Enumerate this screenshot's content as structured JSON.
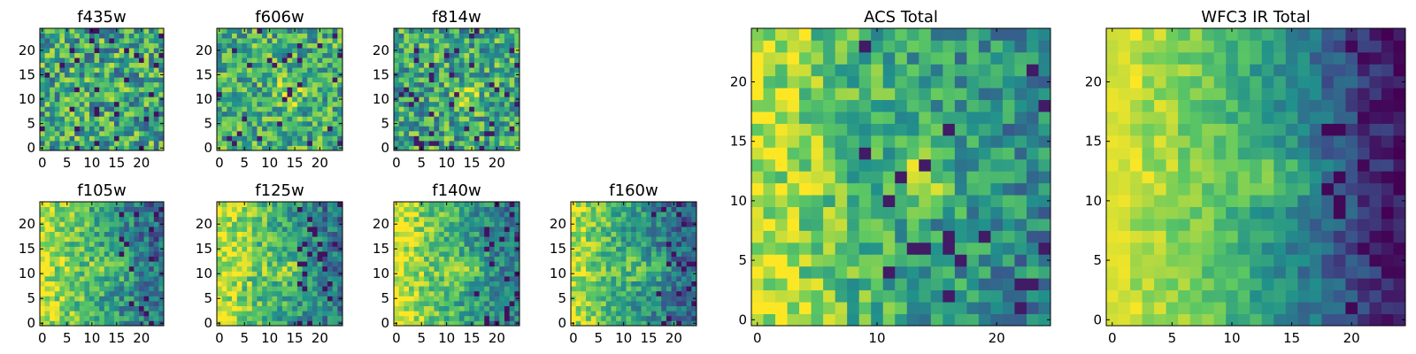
{
  "figure": {
    "colormap": "viridis",
    "colormap_stops": [
      "#440154",
      "#3b528b",
      "#21918c",
      "#5ec962",
      "#fde725"
    ],
    "background": "#ffffff"
  },
  "chart_data": [
    {
      "type": "heatmap",
      "title": "f435w",
      "grid_shape": [
        25,
        25
      ],
      "xlim": [
        0,
        24
      ],
      "ylim": [
        0,
        24
      ],
      "xticks": [
        0,
        5,
        10,
        15,
        20
      ],
      "yticks": [
        0,
        5,
        10,
        15,
        20
      ],
      "pattern": "noise",
      "value_range": [
        0.0,
        1.0
      ],
      "noise_amplitude": 0.32,
      "mean_level": 0.6,
      "grid": false
    },
    {
      "type": "heatmap",
      "title": "f606w",
      "grid_shape": [
        25,
        25
      ],
      "xlim": [
        0,
        24
      ],
      "ylim": [
        0,
        24
      ],
      "xticks": [
        0,
        5,
        10,
        15,
        20
      ],
      "yticks": [
        0,
        5,
        10,
        15,
        20
      ],
      "pattern": "blob",
      "value_range": [
        0.0,
        1.0
      ],
      "noise_amplitude": 0.28,
      "mean_level": 0.62,
      "grid": false
    },
    {
      "type": "heatmap",
      "title": "f814w",
      "grid_shape": [
        25,
        25
      ],
      "xlim": [
        0,
        24
      ],
      "ylim": [
        0,
        24
      ],
      "xticks": [
        0,
        5,
        10,
        15,
        20
      ],
      "yticks": [
        0,
        5,
        10,
        15,
        20
      ],
      "pattern": "blob",
      "value_range": [
        0.0,
        1.0
      ],
      "noise_amplitude": 0.3,
      "mean_level": 0.6,
      "grid": false
    },
    {
      "type": "heatmap",
      "title": "f105w",
      "grid_shape": [
        25,
        25
      ],
      "xlim": [
        0,
        24
      ],
      "ylim": [
        0,
        24
      ],
      "xticks": [
        0,
        5,
        10,
        15,
        20
      ],
      "yticks": [
        0,
        5,
        10,
        15,
        20
      ],
      "pattern": "left-gradient",
      "value_range": [
        0.0,
        1.0
      ],
      "noise_amplitude": 0.22,
      "mean_level": 0.55,
      "grid": false
    },
    {
      "type": "heatmap",
      "title": "f125w",
      "grid_shape": [
        25,
        25
      ],
      "xlim": [
        0,
        24
      ],
      "ylim": [
        0,
        24
      ],
      "xticks": [
        0,
        5,
        10,
        15,
        20
      ],
      "yticks": [
        0,
        5,
        10,
        15,
        20
      ],
      "pattern": "left-gradient",
      "value_range": [
        0.0,
        1.0
      ],
      "noise_amplitude": 0.22,
      "mean_level": 0.57,
      "grid": false
    },
    {
      "type": "heatmap",
      "title": "f140w",
      "grid_shape": [
        25,
        25
      ],
      "xlim": [
        0,
        24
      ],
      "ylim": [
        0,
        24
      ],
      "xticks": [
        0,
        5,
        10,
        15,
        20
      ],
      "yticks": [
        0,
        5,
        10,
        15,
        20
      ],
      "pattern": "left-gradient",
      "value_range": [
        0.0,
        1.0
      ],
      "noise_amplitude": 0.2,
      "mean_level": 0.58,
      "grid": false
    },
    {
      "type": "heatmap",
      "title": "f160w",
      "grid_shape": [
        25,
        25
      ],
      "xlim": [
        0,
        24
      ],
      "ylim": [
        0,
        24
      ],
      "xticks": [
        0,
        5,
        10,
        15,
        20
      ],
      "yticks": [
        0,
        5,
        10,
        15,
        20
      ],
      "pattern": "left-gradient",
      "value_range": [
        0.0,
        1.0
      ],
      "noise_amplitude": 0.2,
      "mean_level": 0.52,
      "grid": false
    },
    {
      "type": "heatmap",
      "title": "ACS Total",
      "grid_shape": [
        25,
        25
      ],
      "xlim": [
        0,
        24
      ],
      "ylim": [
        0,
        24
      ],
      "xticks": [
        0,
        10,
        20
      ],
      "yticks": [
        0,
        5,
        10,
        15,
        20
      ],
      "pattern": "acs-total",
      "value_range": [
        0.0,
        1.0
      ],
      "noise_amplitude": 0.22,
      "mean_level": 0.6,
      "grid": false
    },
    {
      "type": "heatmap",
      "title": "WFC3 IR Total",
      "grid_shape": [
        25,
        25
      ],
      "xlim": [
        0,
        24
      ],
      "ylim": [
        0,
        24
      ],
      "xticks": [
        0,
        5,
        10,
        15,
        20
      ],
      "yticks": [
        0,
        5,
        10,
        15,
        20
      ],
      "pattern": "ir-total",
      "value_range": [
        0.0,
        1.0
      ],
      "noise_amplitude": 0.12,
      "mean_level": 0.55,
      "grid": false
    }
  ]
}
